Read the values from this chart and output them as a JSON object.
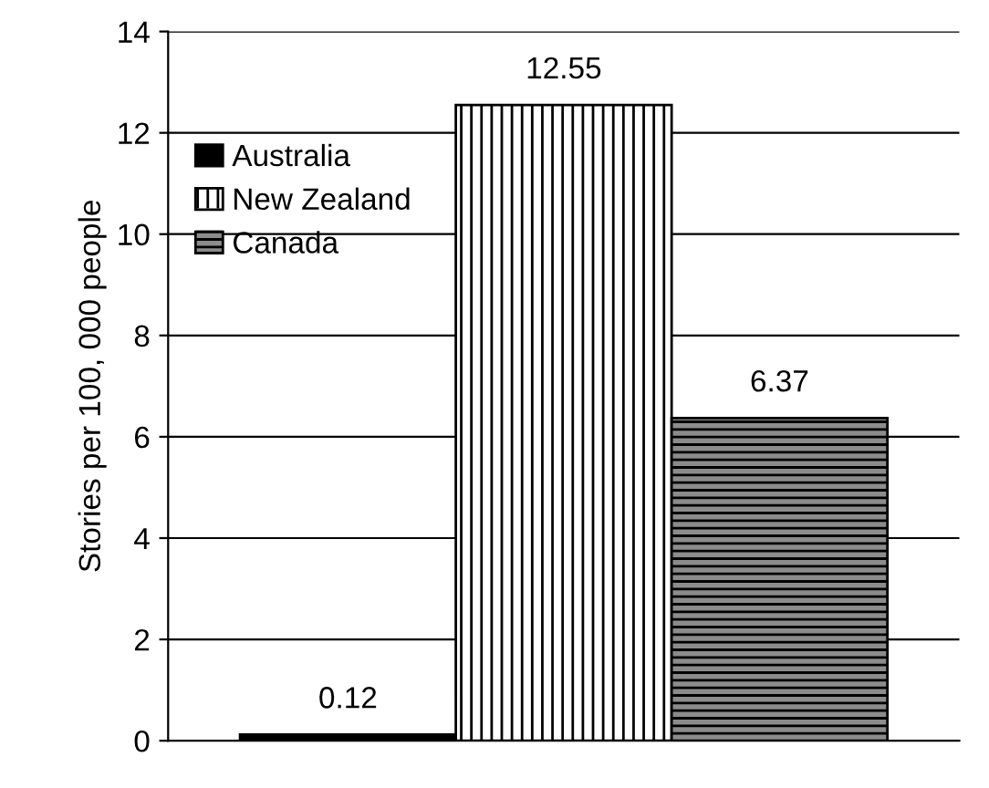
{
  "chart_data": {
    "type": "bar",
    "ylabel": "Stories per 100, 000 people",
    "categories": [
      null
    ],
    "series": [
      {
        "name": "Australia",
        "color": "#000000",
        "values": [
          0.12
        ]
      },
      {
        "name": "New Zealand",
        "color": "#ffffff",
        "values": [
          12.55
        ]
      },
      {
        "name": "Canada",
        "color": "#8c8c8c",
        "values": [
          6.37
        ]
      }
    ],
    "ylim": [
      0,
      14
    ],
    "yticks": [
      0,
      2,
      4,
      6,
      8,
      10,
      12,
      14
    ],
    "grid": "y",
    "legend": "top left",
    "data_labels": true
  }
}
